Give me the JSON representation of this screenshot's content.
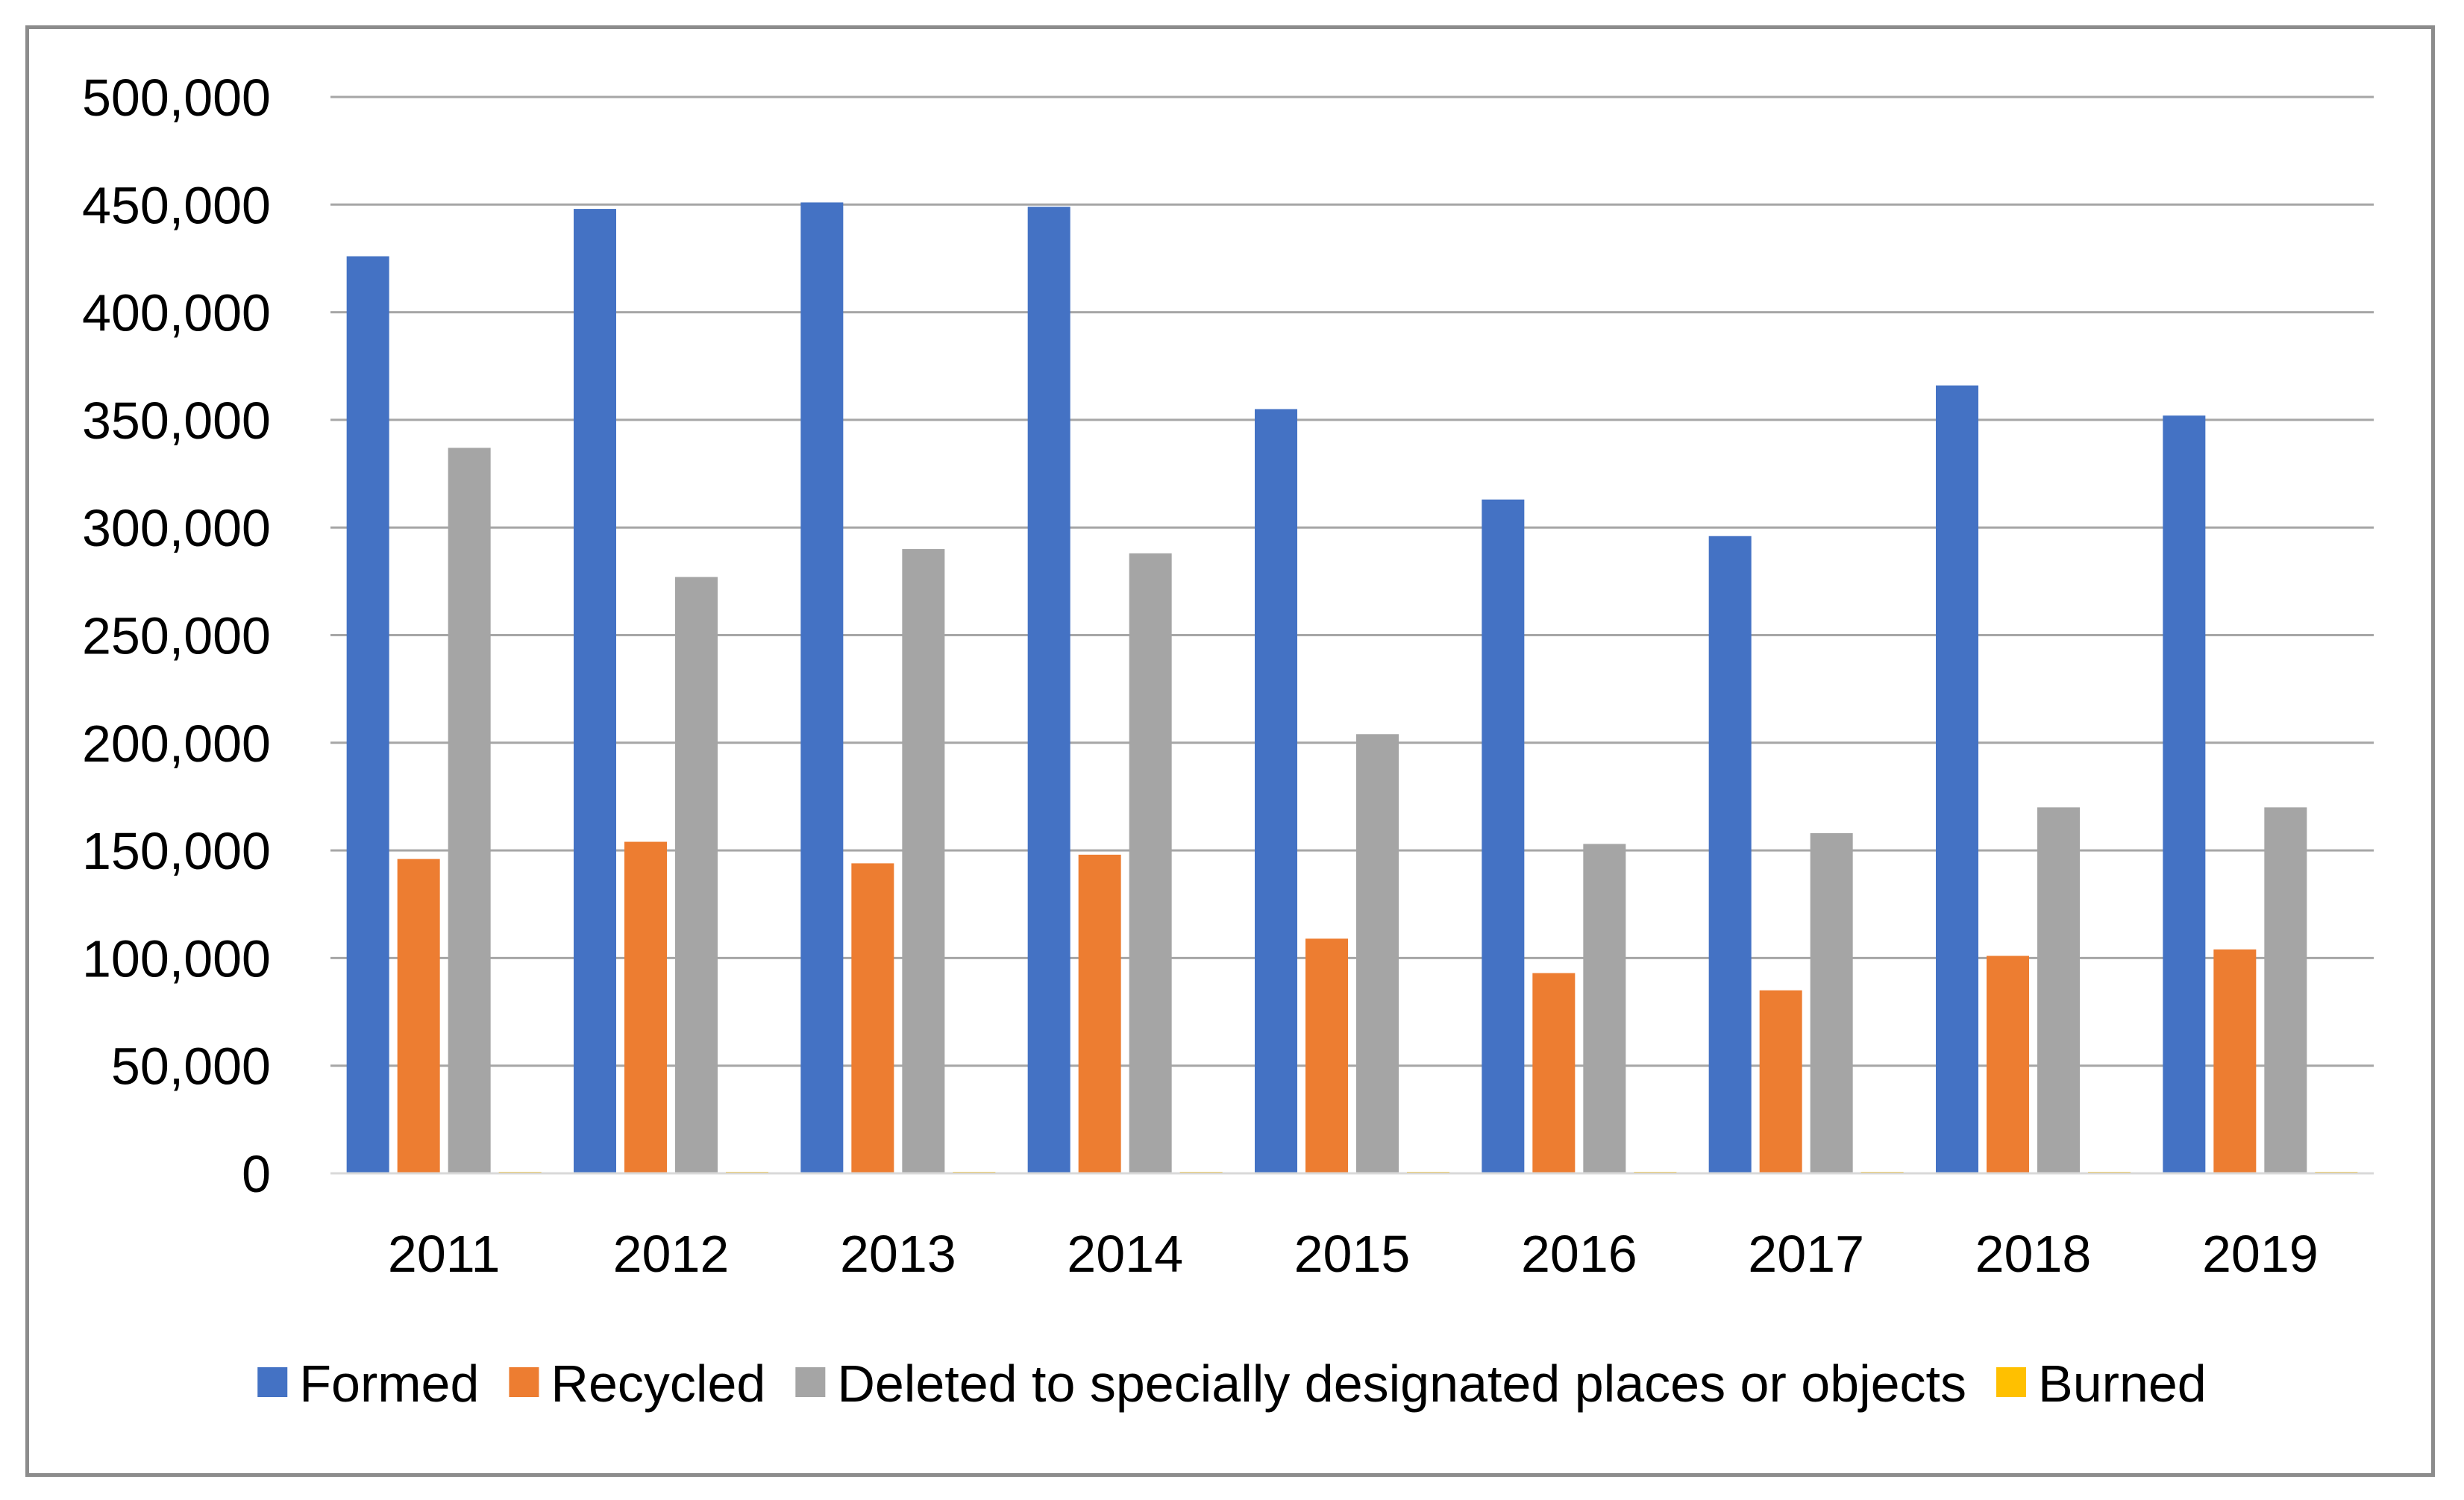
{
  "chart_data": {
    "type": "bar",
    "title": "",
    "xlabel": "",
    "ylabel": "",
    "ylim": [
      0,
      500000
    ],
    "yticks": [
      0,
      50000,
      100000,
      150000,
      200000,
      250000,
      300000,
      350000,
      400000,
      450000,
      500000
    ],
    "ytick_labels": [
      "0",
      "50,000",
      "100,000",
      "150,000",
      "200,000",
      "250,000",
      "300,000",
      "350,000",
      "400,000",
      "450,000",
      "500,000"
    ],
    "grid": true,
    "legend_position": "bottom",
    "categories": [
      "2011",
      "2012",
      "2013",
      "2014",
      "2015",
      "2016",
      "2017",
      "2018",
      "2019"
    ],
    "series": [
      {
        "name": "Formed",
        "color": "#4472c4",
        "values": [
          426000,
          448000,
          451000,
          449000,
          355000,
          313000,
          296000,
          366000,
          352000
        ]
      },
      {
        "name": "Recycled",
        "color": "#ed7d31",
        "values": [
          146000,
          154000,
          144000,
          148000,
          109000,
          93000,
          85000,
          101000,
          104000
        ]
      },
      {
        "name": "Deleted to specially designated places or objects",
        "color": "#a5a5a5",
        "values": [
          337000,
          277000,
          290000,
          288000,
          204000,
          153000,
          158000,
          170000,
          170000
        ]
      },
      {
        "name": "Burned",
        "color": "#ffc000",
        "values": [
          600,
          600,
          600,
          600,
          600,
          600,
          600,
          600,
          600
        ]
      }
    ]
  }
}
